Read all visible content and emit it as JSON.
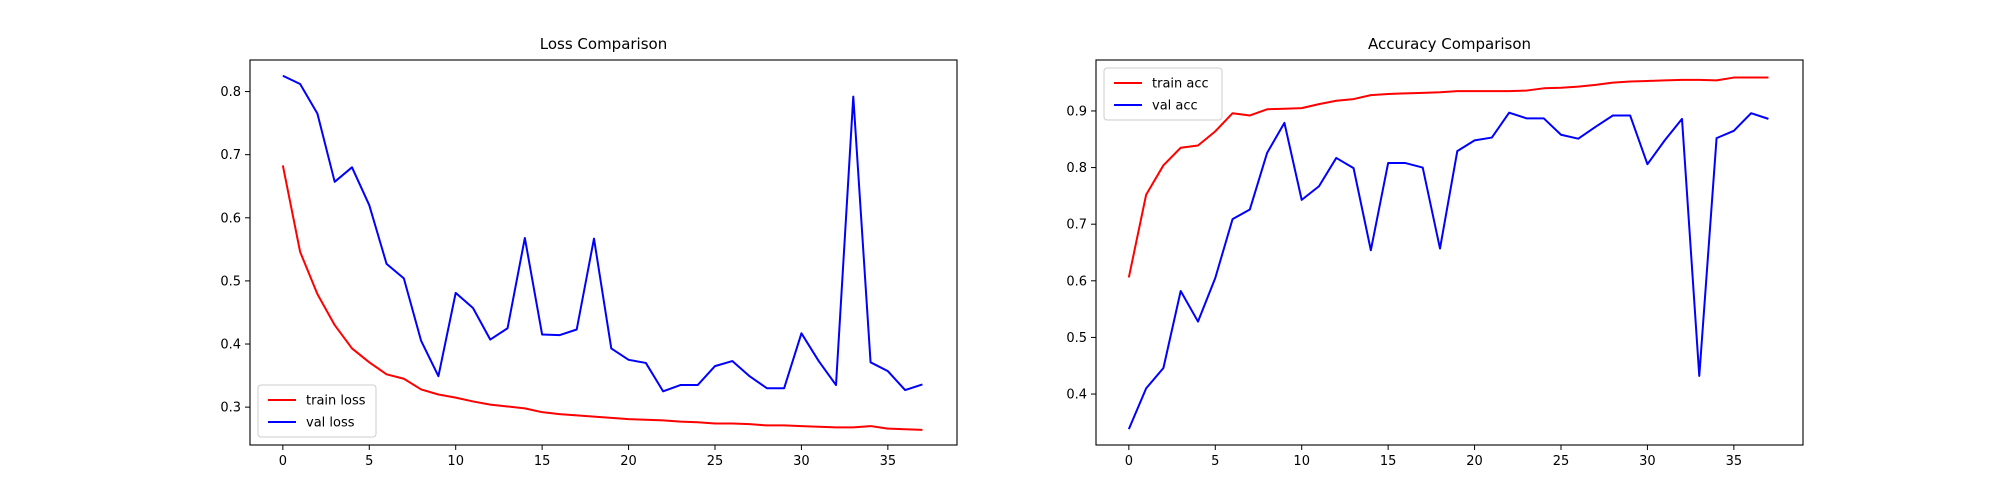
{
  "chart_data": [
    {
      "type": "line",
      "title": "Loss Comparison",
      "xlabel": "",
      "ylabel": "",
      "xlim": [
        -1.9,
        39
      ],
      "ylim": [
        0.24,
        0.85
      ],
      "xticks": [
        0,
        5,
        10,
        15,
        20,
        25,
        30,
        35
      ],
      "yticks": [
        0.3,
        0.4,
        0.5,
        0.6,
        0.7,
        0.8
      ],
      "grid": false,
      "legend_position": "lower-left",
      "series": [
        {
          "name": "train loss",
          "color": "#ff0000",
          "values": [
            0.683,
            0.546,
            0.479,
            0.43,
            0.393,
            0.371,
            0.352,
            0.345,
            0.328,
            0.32,
            0.315,
            0.309,
            0.304,
            0.301,
            0.298,
            0.292,
            0.289,
            0.287,
            0.285,
            0.283,
            0.281,
            0.28,
            0.279,
            0.277,
            0.276,
            0.274,
            0.274,
            0.273,
            0.271,
            0.271,
            0.27,
            0.269,
            0.268,
            0.268,
            0.27,
            0.266,
            0.265,
            0.264
          ]
        },
        {
          "name": "val loss",
          "color": "#0000ff",
          "values": [
            0.825,
            0.812,
            0.765,
            0.657,
            0.68,
            0.62,
            0.527,
            0.504,
            0.405,
            0.349,
            0.481,
            0.457,
            0.407,
            0.425,
            0.568,
            0.415,
            0.414,
            0.423,
            0.567,
            0.393,
            0.375,
            0.37,
            0.325,
            0.335,
            0.335,
            0.365,
            0.373,
            0.349,
            0.33,
            0.33,
            0.417,
            0.373,
            0.335,
            0.792,
            0.371,
            0.357,
            0.327,
            0.336
          ]
        }
      ]
    },
    {
      "type": "line",
      "title": "Accuracy Comparison",
      "xlabel": "",
      "ylabel": "",
      "xlim": [
        -1.9,
        39
      ],
      "ylim": [
        0.31,
        0.99
      ],
      "xticks": [
        0,
        5,
        10,
        15,
        20,
        25,
        30,
        35
      ],
      "yticks": [
        0.4,
        0.5,
        0.6,
        0.7,
        0.8,
        0.9
      ],
      "grid": false,
      "legend_position": "upper-left",
      "series": [
        {
          "name": "train acc",
          "color": "#ff0000",
          "values": [
            0.606,
            0.752,
            0.804,
            0.835,
            0.839,
            0.864,
            0.896,
            0.892,
            0.903,
            0.904,
            0.905,
            0.912,
            0.918,
            0.921,
            0.928,
            0.93,
            0.931,
            0.932,
            0.933,
            0.935,
            0.935,
            0.935,
            0.935,
            0.936,
            0.94,
            0.941,
            0.943,
            0.946,
            0.95,
            0.952,
            0.953,
            0.954,
            0.955,
            0.955,
            0.954,
            0.959,
            0.959,
            0.959
          ]
        },
        {
          "name": "val acc",
          "color": "#0000ff",
          "values": [
            0.338,
            0.41,
            0.446,
            0.582,
            0.528,
            0.605,
            0.709,
            0.726,
            0.826,
            0.879,
            0.743,
            0.767,
            0.817,
            0.799,
            0.654,
            0.808,
            0.808,
            0.8,
            0.657,
            0.829,
            0.848,
            0.853,
            0.897,
            0.887,
            0.887,
            0.858,
            0.851,
            0.872,
            0.892,
            0.892,
            0.806,
            0.848,
            0.886,
            0.432,
            0.852,
            0.865,
            0.896,
            0.886
          ]
        }
      ]
    }
  ]
}
